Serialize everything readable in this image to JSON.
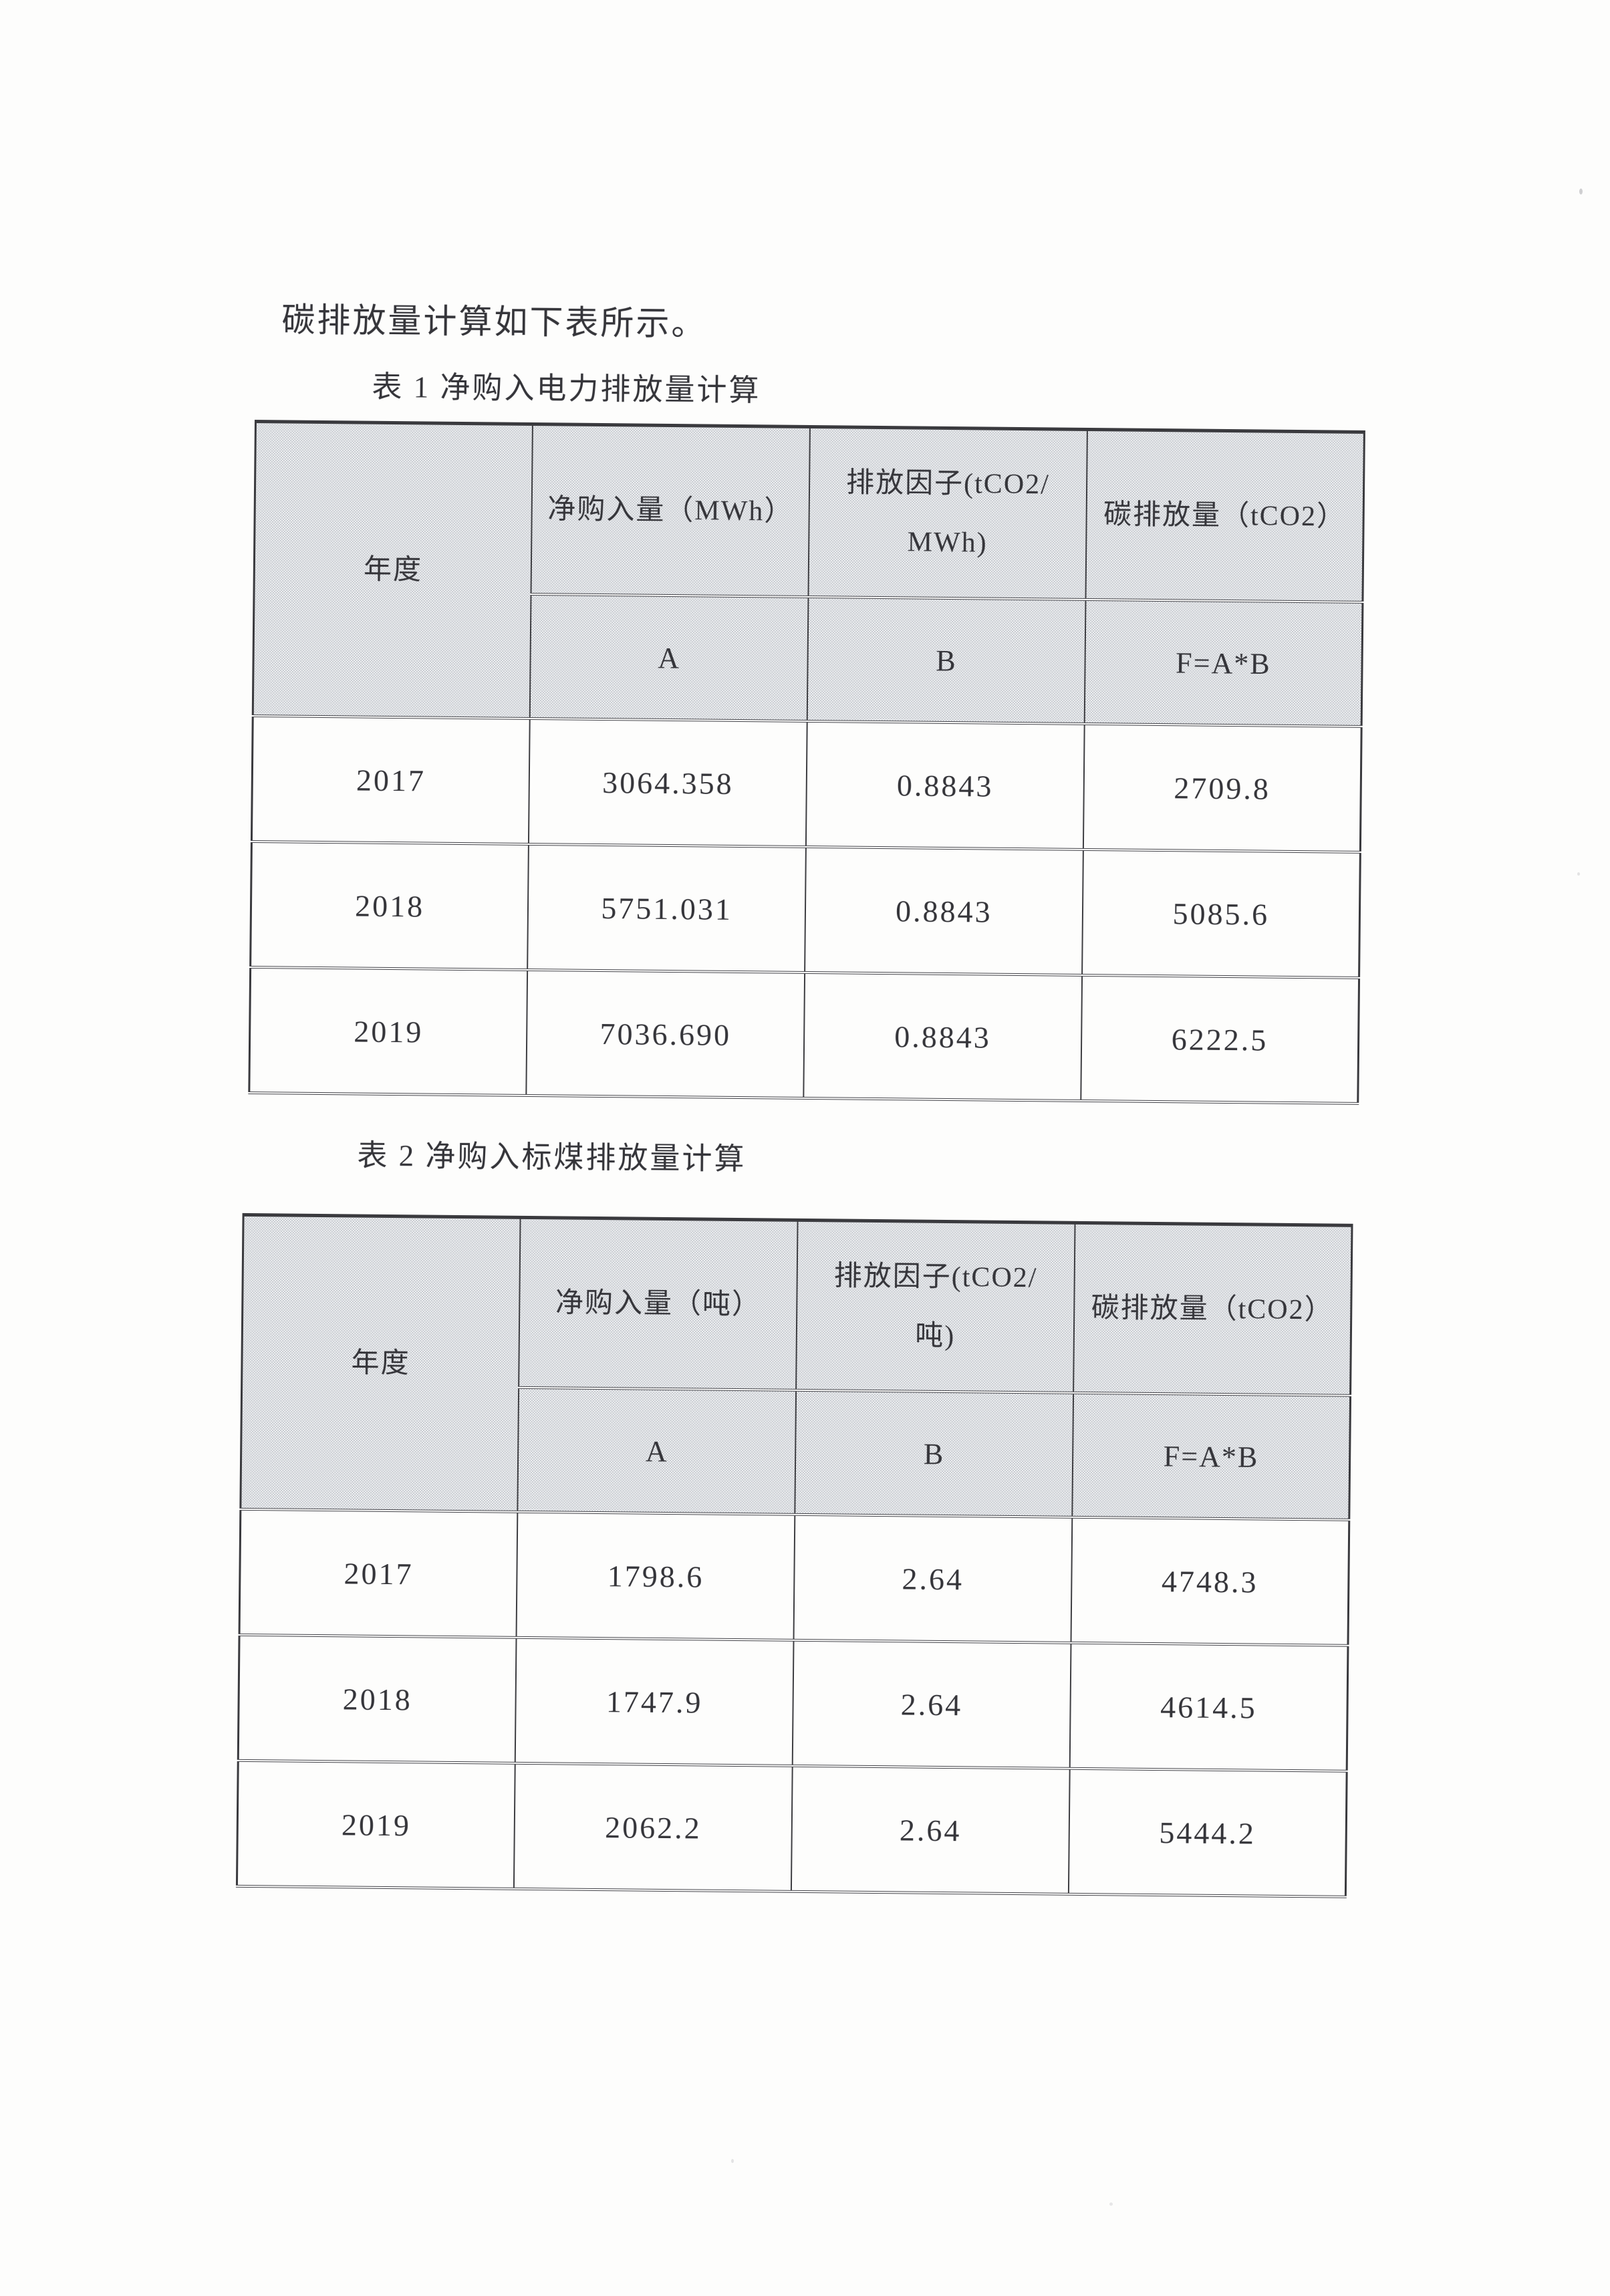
{
  "page": {
    "intro_text": "碳排放量计算如下表所示。"
  },
  "colors": {
    "paper": "#fdfdfc",
    "ink": "#35353a",
    "table_border": "#3e3e42",
    "header_shade": "#d9dce0"
  },
  "tables": [
    {
      "caption": "表 1 净购入电力排放量计算",
      "columns": [
        "年度",
        "净购入量（MWh）",
        "排放因子(tCO2/\nMWh)",
        "碳排放量（tCO2）"
      ],
      "sub_headers": [
        "A",
        "B",
        "F=A*B"
      ],
      "rows": [
        {
          "year": "2017",
          "a": "3064.358",
          "b": "0.8843",
          "f": "2709.8"
        },
        {
          "year": "2018",
          "a": "5751.031",
          "b": "0.8843",
          "f": "5085.6"
        },
        {
          "year": "2019",
          "a": "7036.690",
          "b": "0.8843",
          "f": "6222.5"
        }
      ]
    },
    {
      "caption": "表 2 净购入标煤排放量计算",
      "columns": [
        "年度",
        "净购入量（吨）",
        "排放因子(tCO2/\n吨)",
        "碳排放量（tCO2）"
      ],
      "sub_headers": [
        "A",
        "B",
        "F=A*B"
      ],
      "rows": [
        {
          "year": "2017",
          "a": "1798.6",
          "b": "2.64",
          "f": "4748.3"
        },
        {
          "year": "2018",
          "a": "1747.9",
          "b": "2.64",
          "f": "4614.5"
        },
        {
          "year": "2019",
          "a": "2062.2",
          "b": "2.64",
          "f": "5444.2"
        }
      ]
    }
  ]
}
